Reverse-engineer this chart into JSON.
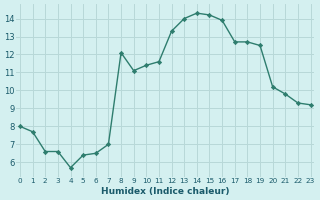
{
  "x": [
    0,
    1,
    2,
    3,
    4,
    5,
    6,
    7,
    8,
    9,
    10,
    11,
    12,
    13,
    14,
    15,
    16,
    17,
    18,
    19,
    20,
    21,
    22,
    23
  ],
  "y": [
    8.0,
    7.7,
    6.6,
    6.6,
    5.7,
    6.4,
    6.5,
    7.0,
    12.1,
    11.1,
    11.4,
    11.6,
    13.3,
    14.0,
    14.3,
    14.2,
    13.9,
    12.7,
    12.7,
    12.5,
    10.2,
    9.8,
    9.3,
    9.2
  ],
  "xlabel": "Humidex (Indice chaleur)",
  "line_color": "#2e7d6e",
  "bg_color": "#d4f0f0",
  "grid_color": "#b8d8d8",
  "tick_label_color": "#1a5a6a",
  "xlabel_color": "#1a5a6a",
  "ylim": [
    5.2,
    14.8
  ],
  "xlim_min": -0.3,
  "xlim_max": 23.3,
  "yticks": [
    6,
    7,
    8,
    9,
    10,
    11,
    12,
    13,
    14
  ],
  "xticks": [
    0,
    1,
    2,
    3,
    4,
    5,
    6,
    7,
    8,
    9,
    10,
    11,
    12,
    13,
    14,
    15,
    16,
    17,
    18,
    19,
    20,
    21,
    22,
    23
  ]
}
